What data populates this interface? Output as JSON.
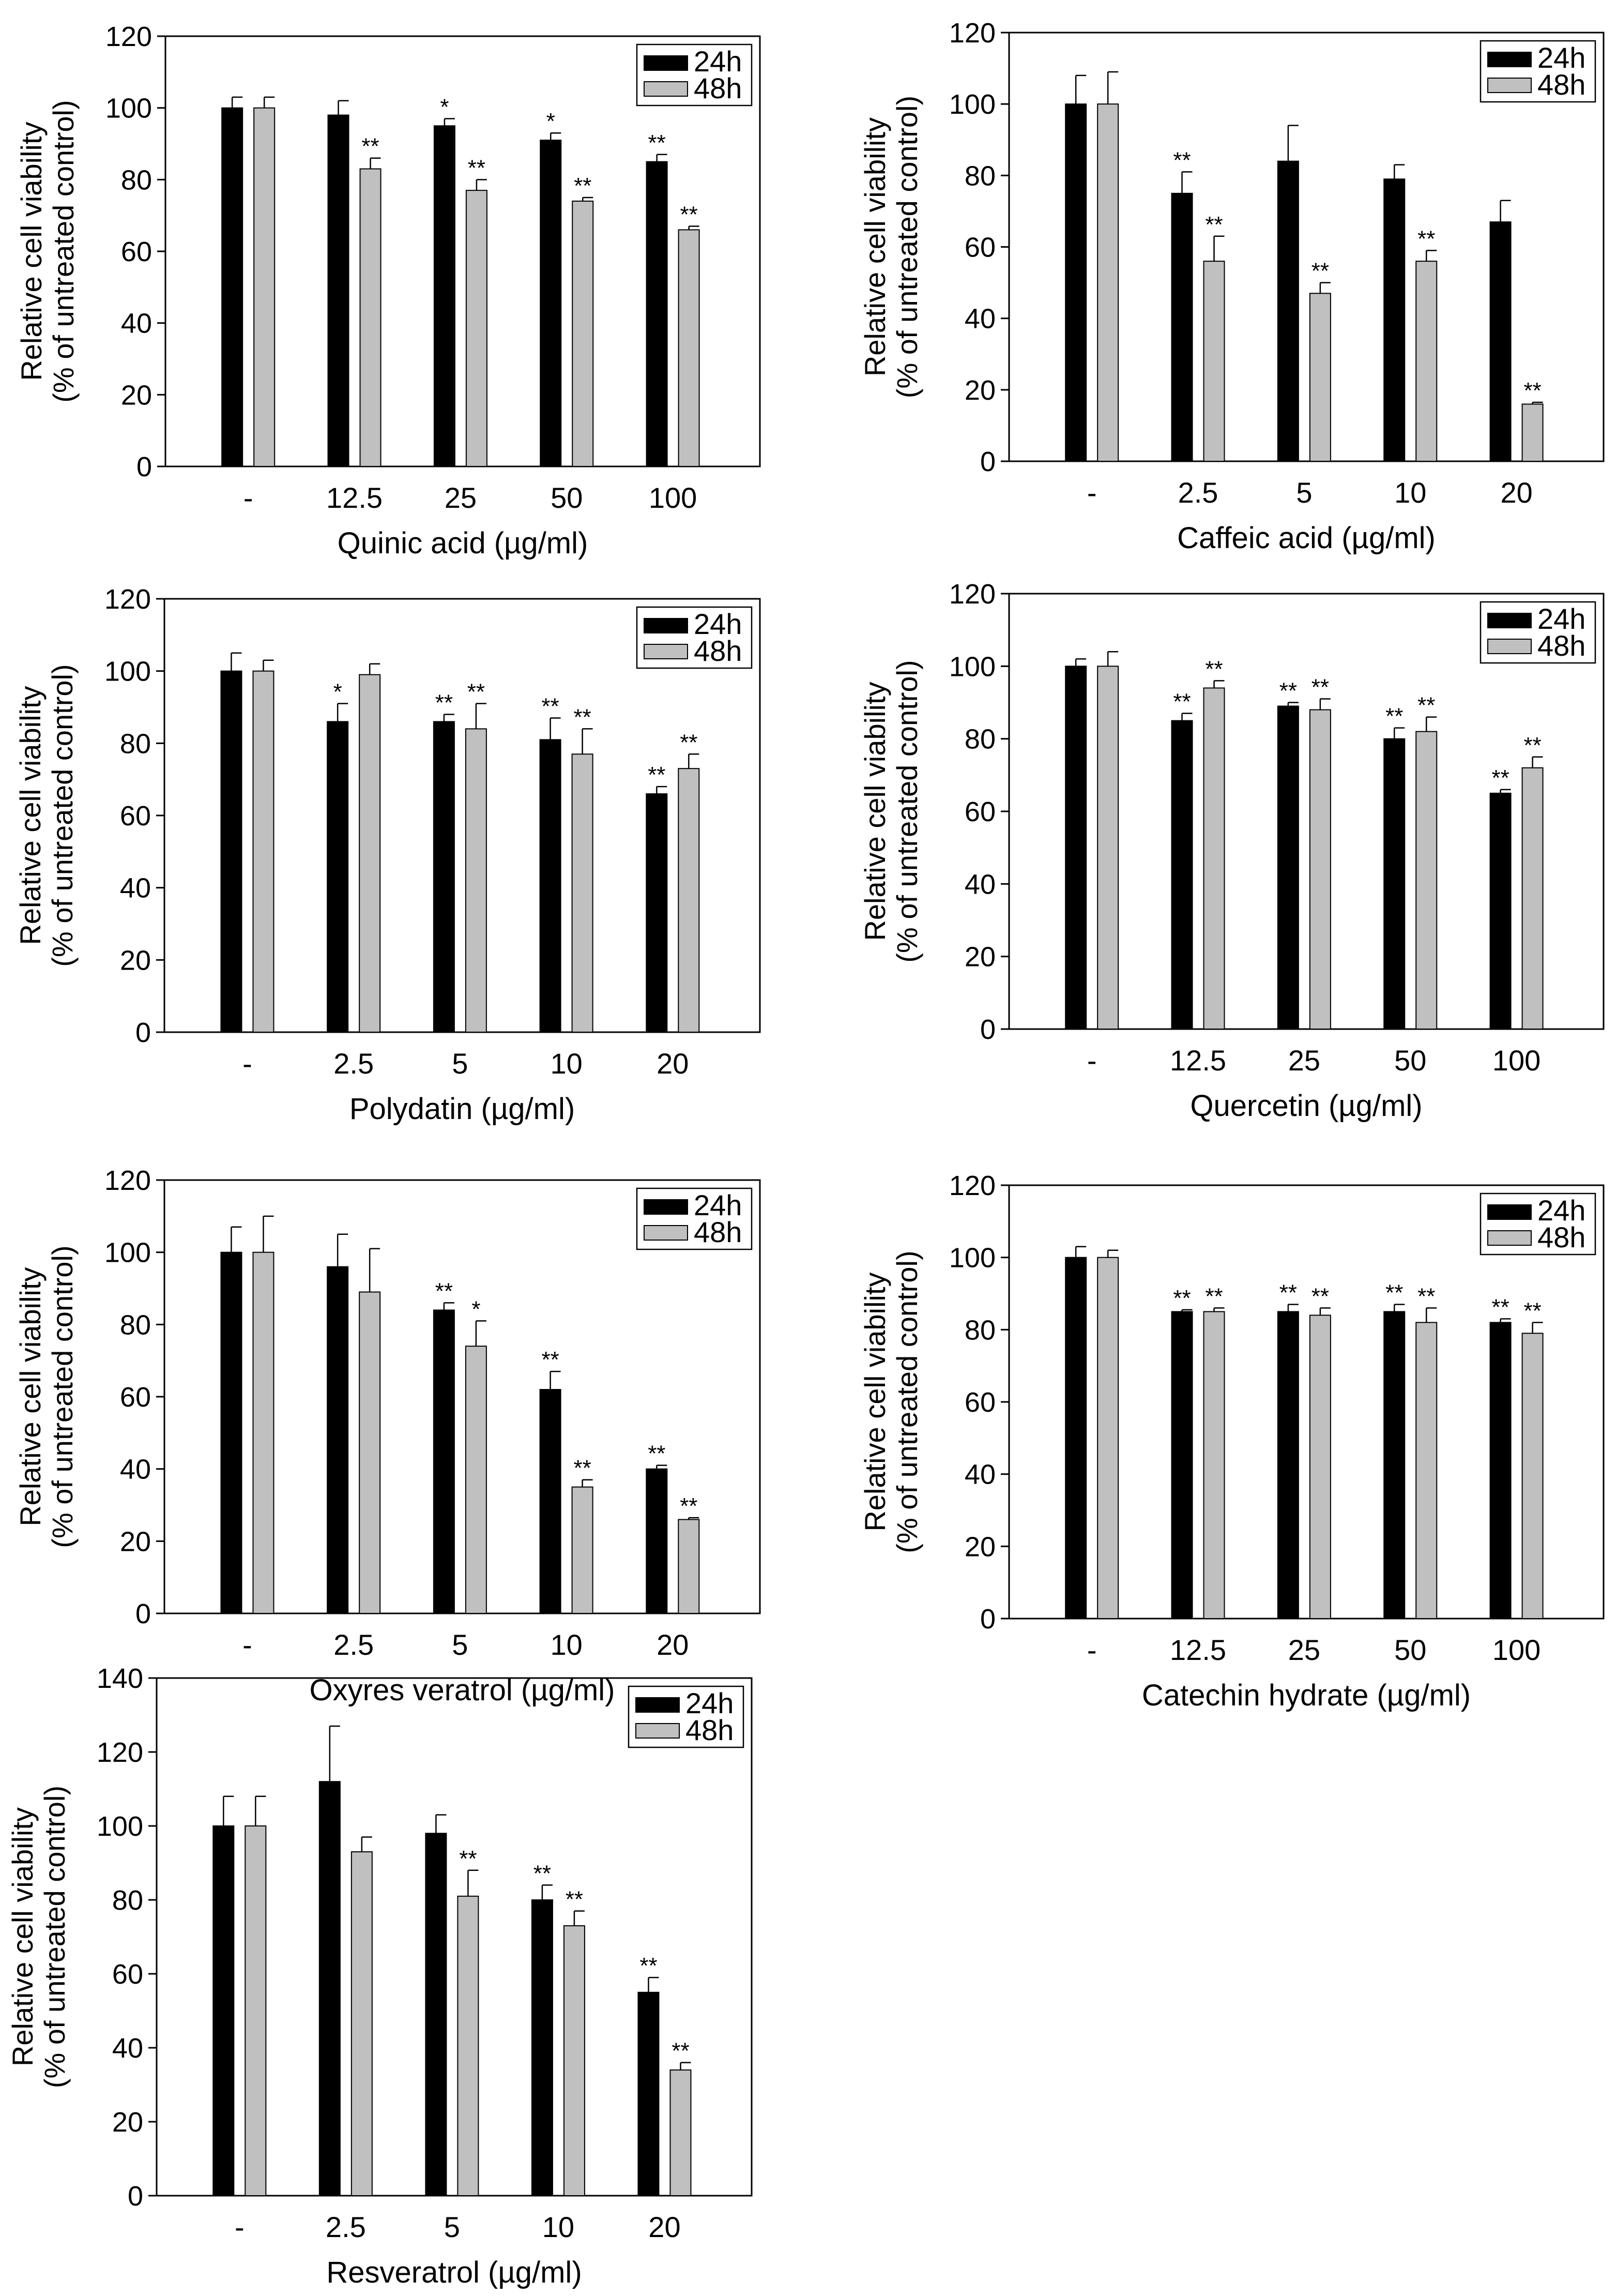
{
  "figure": {
    "legend_24h": "24h",
    "legend_48h": "48h",
    "ylabel_line1": "Relative cell viability",
    "ylabel_line2": "(% of untreated control)"
  },
  "colors": {
    "series_24h": "#000000",
    "series_48h": "#c0c0c0",
    "axis": "#000000",
    "background": "#ffffff"
  },
  "chart_data": [
    {
      "type": "bar",
      "id": "quinic-acid",
      "title": "",
      "xlabel": "Quinic acid (µg/ml)",
      "ylabel": "Relative cell viability (% of untreated control)",
      "categories": [
        "-",
        "12.5",
        "25",
        "50",
        "100"
      ],
      "ylim": [
        0,
        120
      ],
      "yticks": [
        0,
        20,
        40,
        60,
        80,
        100,
        120
      ],
      "legend_position": "top-right",
      "grid": false,
      "series": [
        {
          "name": "24h",
          "values": [
            100,
            98,
            95,
            91,
            85
          ],
          "errors": [
            3,
            4,
            2,
            2,
            2
          ],
          "significance": [
            "",
            "",
            "*",
            "*",
            "**"
          ]
        },
        {
          "name": "48h",
          "values": [
            100,
            83,
            77,
            74,
            66
          ],
          "errors": [
            3,
            3,
            3,
            1,
            1
          ],
          "significance": [
            "",
            "**",
            "**",
            "**",
            "**"
          ]
        }
      ]
    },
    {
      "type": "bar",
      "id": "caffeic-acid",
      "title": "",
      "xlabel": "Caffeic acid (µg/ml)",
      "ylabel": "Relative cell viability (% of untreated control)",
      "categories": [
        "-",
        "2.5",
        "5",
        "10",
        "20"
      ],
      "ylim": [
        0,
        120
      ],
      "yticks": [
        0,
        20,
        40,
        60,
        80,
        100,
        120
      ],
      "legend_position": "top-right",
      "grid": false,
      "series": [
        {
          "name": "24h",
          "values": [
            100,
            75,
            84,
            79,
            67
          ],
          "errors": [
            8,
            6,
            10,
            4,
            6
          ],
          "significance": [
            "",
            "**",
            "",
            "",
            ""
          ]
        },
        {
          "name": "48h",
          "values": [
            100,
            56,
            47,
            56,
            16
          ],
          "errors": [
            9,
            7,
            3,
            3,
            0.5
          ],
          "significance": [
            "",
            "**",
            "**",
            "**",
            "**"
          ]
        }
      ]
    },
    {
      "type": "bar",
      "id": "polydatin",
      "title": "",
      "xlabel": "Polydatin (µg/ml)",
      "ylabel": "Relative cell viability (% of untreated control)",
      "categories": [
        "-",
        "2.5",
        "5",
        "10",
        "20"
      ],
      "ylim": [
        0,
        120
      ],
      "yticks": [
        0,
        20,
        40,
        60,
        80,
        100,
        120
      ],
      "legend_position": "top-right",
      "grid": false,
      "series": [
        {
          "name": "24h",
          "values": [
            100,
            86,
            86,
            81,
            66
          ],
          "errors": [
            5,
            5,
            2,
            6,
            2
          ],
          "significance": [
            "",
            "*",
            "**",
            "**",
            "**"
          ]
        },
        {
          "name": "48h",
          "values": [
            100,
            99,
            84,
            77,
            73
          ],
          "errors": [
            3,
            3,
            7,
            7,
            4
          ],
          "significance": [
            "",
            "",
            "**",
            "**",
            "**"
          ]
        }
      ]
    },
    {
      "type": "bar",
      "id": "quercetin",
      "title": "",
      "xlabel": "Quercetin (µg/ml)",
      "ylabel": "Relative cell viability (% of untreated control)",
      "categories": [
        "-",
        "12.5",
        "25",
        "50",
        "100"
      ],
      "ylim": [
        0,
        120
      ],
      "yticks": [
        0,
        20,
        40,
        60,
        80,
        100,
        120
      ],
      "legend_position": "top-right",
      "grid": false,
      "series": [
        {
          "name": "24h",
          "values": [
            100,
            85,
            89,
            80,
            65
          ],
          "errors": [
            2,
            2,
            1,
            3,
            1
          ],
          "significance": [
            "",
            "**",
            "**",
            "**",
            "**"
          ]
        },
        {
          "name": "48h",
          "values": [
            100,
            94,
            88,
            82,
            72
          ],
          "errors": [
            4,
            2,
            3,
            4,
            3
          ],
          "significance": [
            "",
            "**",
            "**",
            "**",
            "**"
          ]
        }
      ]
    },
    {
      "type": "bar",
      "id": "oxyresveratrol",
      "title": "",
      "xlabel": "Oxyres veratrol (µg/ml)",
      "ylabel": "Relative cell viability (% of untreated control)",
      "categories": [
        "-",
        "2.5",
        "5",
        "10",
        "20"
      ],
      "ylim": [
        0,
        120
      ],
      "yticks": [
        0,
        20,
        40,
        60,
        80,
        100,
        120
      ],
      "legend_position": "top-right",
      "grid": false,
      "series": [
        {
          "name": "24h",
          "values": [
            100,
            96,
            84,
            62,
            40
          ],
          "errors": [
            7,
            9,
            2,
            5,
            1
          ],
          "significance": [
            "",
            "",
            "**",
            "**",
            "**"
          ]
        },
        {
          "name": "48h",
          "values": [
            100,
            89,
            74,
            35,
            26
          ],
          "errors": [
            10,
            12,
            7,
            2,
            0.5
          ],
          "significance": [
            "",
            "",
            "*",
            "**",
            "**"
          ]
        }
      ]
    },
    {
      "type": "bar",
      "id": "catechin-hydrate",
      "title": "",
      "xlabel": "Catechin hydrate (µg/ml)",
      "ylabel": "Relative cell viability (% of untreated control)",
      "categories": [
        "-",
        "12.5",
        "25",
        "50",
        "100"
      ],
      "ylim": [
        0,
        120
      ],
      "yticks": [
        0,
        20,
        40,
        60,
        80,
        100,
        120
      ],
      "legend_position": "top-right",
      "grid": false,
      "series": [
        {
          "name": "24h",
          "values": [
            100,
            85,
            85,
            85,
            82
          ],
          "errors": [
            3,
            0.5,
            2,
            2,
            1
          ],
          "significance": [
            "",
            "**",
            "**",
            "**",
            "**"
          ]
        },
        {
          "name": "48h",
          "values": [
            100,
            85,
            84,
            82,
            79
          ],
          "errors": [
            2,
            1,
            2,
            4,
            3
          ],
          "significance": [
            "",
            "**",
            "**",
            "**",
            "**"
          ]
        }
      ]
    },
    {
      "type": "bar",
      "id": "resveratrol",
      "title": "",
      "xlabel": "Resveratrol (µg/ml)",
      "ylabel": "Relative cell viability (% of untreated control)",
      "categories": [
        "-",
        "2.5",
        "5",
        "10",
        "20"
      ],
      "ylim": [
        0,
        140
      ],
      "yticks": [
        0,
        20,
        40,
        60,
        80,
        100,
        120,
        140
      ],
      "legend_position": "top-right",
      "grid": false,
      "series": [
        {
          "name": "24h",
          "values": [
            100,
            112,
            98,
            80,
            55
          ],
          "errors": [
            8,
            15,
            5,
            4,
            4
          ],
          "significance": [
            "",
            "",
            "",
            "**",
            "**"
          ]
        },
        {
          "name": "48h",
          "values": [
            100,
            93,
            81,
            73,
            34
          ],
          "errors": [
            8,
            4,
            7,
            4,
            2
          ],
          "significance": [
            "",
            "",
            "**",
            "**",
            "**"
          ]
        }
      ]
    }
  ]
}
